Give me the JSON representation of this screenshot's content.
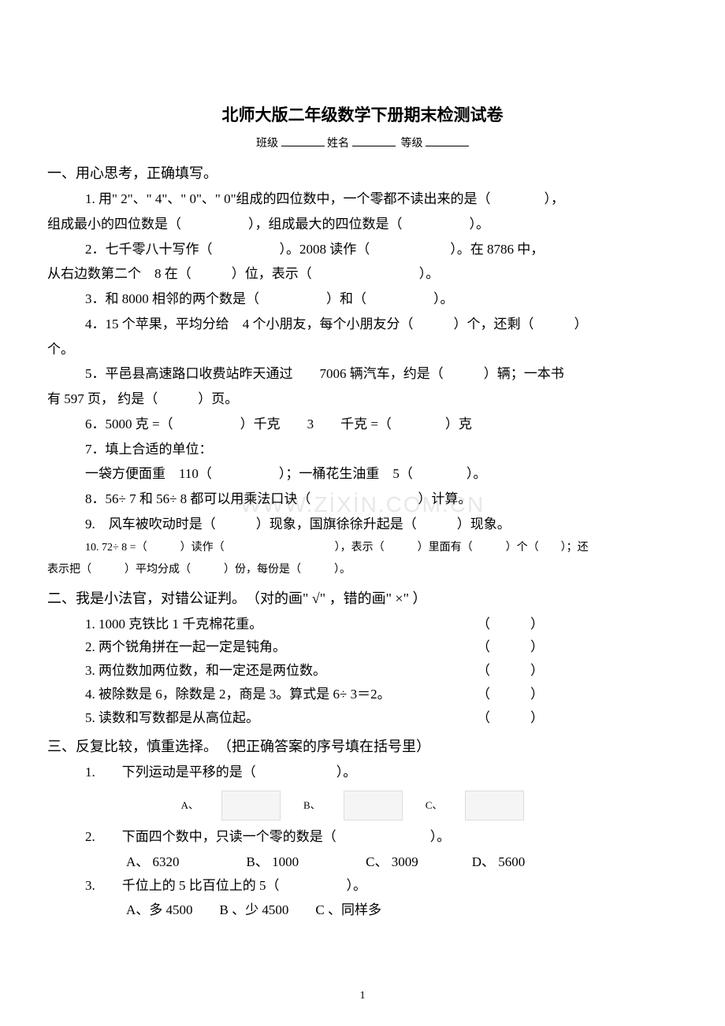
{
  "title": "北师大版二年级数学下册期末检测试卷",
  "header": {
    "class_label": "班级",
    "name_label": "姓名",
    "grade_label": "等级"
  },
  "section1": {
    "heading": "一、用心思考，正确填写。",
    "q1a": "1. 用\" 2\"、\" 4\"、\" 0\"、\" 0\"组成的四位数中，一个零都不读出来的是（　　　　），",
    "q1b": "组成最小的四位数是（　　　　　），组成最大的四位数是（　　　　　）。",
    "q2a": "2．七千零八十写作（　　　　　）。2008 读作（　　　　　　）。在 8786 中，",
    "q2b": "从右边数第二个　8 在（　　　）位，表示（　　　　　　　　）。",
    "q3": "3．和 8000 相邻的两个数是（　　　　　）和（　　　　　）。",
    "q4a": "4．15 个苹果，平均分给　4 个小朋友，每个小朋友分（　　　）个，还剩（　　　）",
    "q4b": "个。",
    "q5a": "5．平邑县高速路口收费站昨天通过　　7006 辆汽车，约是（　　　）辆；一本书",
    "q5b": "有 597 页，  约是（　　　）页。",
    "q6": "6．5000  克 =（　　　　　）千克　　3　　千克 =（　　　　）克",
    "q7": "7．填上合适的单位：",
    "q7b": " 一袋方便面重　110（　　　　　）；一桶花生油重　5（　　　　）。",
    "q8": "8．56÷ 7 和 56÷ 8 都可以用乘法口诀（　　　　　　　　）计算。",
    "q9": "9.　风车被吹动时是（　　　）现象，国旗徐徐升起是（　　　）现象。",
    "q10a": "10.  72÷ 8 =（　　　）读作（　　　　　　　　　　），表示（　　　）里面有（　　　）个（　　）；还",
    "q10b": "表示把（　　　）平均分成（　　　）份，每份是（　　　）。"
  },
  "section2": {
    "heading": "二、我是小法官，对错公证判。　（对的画\" √\" ，错的画\" ×\" ）",
    "items": [
      {
        "text": "1. 1000 克铁比 1 千克棉花重。",
        "paren": "（　　　）"
      },
      {
        "text": "2. 两个锐角拼在一起一定是钝角。",
        "paren": "（　　　）"
      },
      {
        "text": "3. 两位数加两位数，和一定还是两位数。",
        "paren": "（　　　）"
      },
      {
        "text": "4. 被除数是  6，除数是  2，商是  3。算式是  6÷ 3＝2。",
        "paren": "（　　　）"
      },
      {
        "text": "5. 读数和写数都是从高位起。",
        "paren": "（　　　）"
      }
    ]
  },
  "section3": {
    "heading": "三、反复比较，慎重选择。　（把正确答案的序号填在括号里）",
    "q1": "1.　　下列运动是平移的是（　　　　　　）。",
    "img_labels": {
      "a": "A、",
      "b": "B、",
      "c": "C、"
    },
    "q2": "2.　　下面四个数中，只读一个零的数是（　　　　　　　）。",
    "q2choices": "A、 6320　　　　　B、 1000　　　　　C、 3009　　　　D、 5600",
    "q3": "3.　　千位上的  5 比百位上的  5（　　　　　）。",
    "q3choices": "A、多 4500　　B  、少 4500　　C  、同样多"
  },
  "watermark": "WWW.ZİXİN.COM.CN",
  "page_num": "1"
}
